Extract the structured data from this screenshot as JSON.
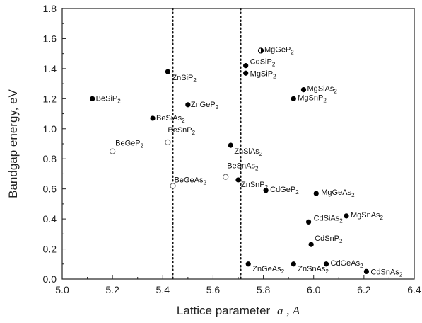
{
  "chart_data": {
    "type": "scatter",
    "title": "",
    "xlabel_main": "Lattice parameter",
    "xlabel_symbol": "a",
    "xlabel_unit": "A",
    "ylabel": "Bandgap energy, eV",
    "xlim": [
      5.0,
      6.4
    ],
    "ylim": [
      0.0,
      1.8
    ],
    "x_ticks": [
      5.0,
      5.2,
      5.4,
      5.6,
      5.8,
      6.0,
      6.2,
      6.4
    ],
    "y_ticks": [
      0.0,
      0.2,
      0.4,
      0.6,
      0.8,
      1.0,
      1.2,
      1.4,
      1.6,
      1.8
    ],
    "reference_lines_x": [
      5.44,
      5.71
    ],
    "grid": false,
    "points": [
      {
        "label": "BeSiP2",
        "base": "BeSiP",
        "sub": "2",
        "x": 5.12,
        "y": 1.2,
        "marker": "filled"
      },
      {
        "label": "ZnSiP2",
        "base": "ZnSiP",
        "sub": "2",
        "x": 5.42,
        "y": 1.38,
        "marker": "filled"
      },
      {
        "label": "ZnGeP2",
        "base": "ZnGeP",
        "sub": "2",
        "x": 5.5,
        "y": 1.16,
        "marker": "filled"
      },
      {
        "label": "BeSiAs2",
        "base": "BeSiAs",
        "sub": "2",
        "x": 5.36,
        "y": 1.07,
        "marker": "filled"
      },
      {
        "label": "BeSnP2",
        "base": "BeSnP",
        "sub": "2",
        "x": 5.42,
        "y": 0.91,
        "marker": "open"
      },
      {
        "label": "BeGeP2",
        "base": "BeGeP",
        "sub": "2",
        "x": 5.2,
        "y": 0.85,
        "marker": "open"
      },
      {
        "label": "BeGeAs2",
        "base": "BeGeAs",
        "sub": "2",
        "x": 5.44,
        "y": 0.62,
        "marker": "open"
      },
      {
        "label": "BeSnAs2",
        "base": "BeSnAs",
        "sub": "2",
        "x": 5.65,
        "y": 0.68,
        "marker": "open"
      },
      {
        "label": "ZnSiAs2",
        "base": "ZnSiAs",
        "sub": "2",
        "x": 5.67,
        "y": 0.89,
        "marker": "filled"
      },
      {
        "label": "ZnSnP2",
        "base": "ZnSnP",
        "sub": "2",
        "x": 5.7,
        "y": 0.66,
        "marker": "filled"
      },
      {
        "label": "CdGeP2",
        "base": "CdGeP",
        "sub": "2",
        "x": 5.81,
        "y": 0.59,
        "marker": "filled"
      },
      {
        "label": "MgGeP2",
        "base": "MgGeP",
        "sub": "2",
        "x": 5.79,
        "y": 1.52,
        "marker": "half"
      },
      {
        "label": "CdSiP2",
        "base": "CdSiP",
        "sub": "2",
        "x": 5.73,
        "y": 1.42,
        "marker": "filled"
      },
      {
        "label": "MgSiP2",
        "base": "MgSiP",
        "sub": "2",
        "x": 5.73,
        "y": 1.37,
        "marker": "filled"
      },
      {
        "label": "MgSiAs2",
        "base": "MgSiAs",
        "sub": "2",
        "x": 5.96,
        "y": 1.26,
        "marker": "filled"
      },
      {
        "label": "MgSnP2",
        "base": "MgSnP",
        "sub": "2",
        "x": 5.92,
        "y": 1.2,
        "marker": "filled"
      },
      {
        "label": "MgGeAs2",
        "base": "MgGeAs",
        "sub": "2",
        "x": 6.01,
        "y": 0.57,
        "marker": "filled"
      },
      {
        "label": "MgSnAs2",
        "base": "MgSnAs",
        "sub": "2",
        "x": 6.13,
        "y": 0.42,
        "marker": "filled"
      },
      {
        "label": "CdSiAs2",
        "base": "CdSiAs",
        "sub": "2",
        "x": 5.98,
        "y": 0.38,
        "marker": "filled"
      },
      {
        "label": "CdSnP2",
        "base": "CdSnP",
        "sub": "2",
        "x": 5.99,
        "y": 0.23,
        "marker": "filled"
      },
      {
        "label": "ZnGeAs2",
        "base": "ZnGeAs",
        "sub": "2",
        "x": 5.74,
        "y": 0.1,
        "marker": "filled"
      },
      {
        "label": "ZnSnAs2",
        "base": "ZnSnAs",
        "sub": "2",
        "x": 5.92,
        "y": 0.1,
        "marker": "filled"
      },
      {
        "label": "CdGeAs2",
        "base": "CdGeAs",
        "sub": "2",
        "x": 6.05,
        "y": 0.1,
        "marker": "filled"
      },
      {
        "label": "CdSnAs2",
        "base": "CdSnAs",
        "sub": "2",
        "x": 6.21,
        "y": 0.05,
        "marker": "filled"
      }
    ]
  }
}
